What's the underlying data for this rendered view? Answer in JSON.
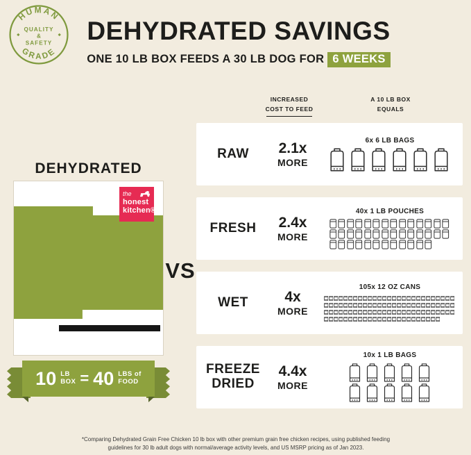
{
  "badge": {
    "top": "HUMAN",
    "mid1": "QUALITY",
    "mid2": "&",
    "mid3": "SAFETY",
    "bottom": "GRADE"
  },
  "header": {
    "title": "DEHYDRATED SAVINGS",
    "subtitle": "ONE 10 LB BOX FEEDS A 30 LB DOG FOR",
    "highlight": "6 WEEKS"
  },
  "columns": {
    "cost": "INCREASED COST TO FEED",
    "equals": "A 10 LB BOX EQUALS"
  },
  "left": {
    "title": "DEHYDRATED",
    "logo": {
      "line1": "the",
      "line2": "honest",
      "line3": "kitchen®"
    },
    "ribbon": {
      "qty1": "10",
      "unit1a": "LB",
      "unit1b": "BOX",
      "eq": "=",
      "qty2": "40",
      "unit2a": "LBS of",
      "unit2b": "FOOD"
    }
  },
  "vs": "VS",
  "rows": [
    {
      "label": "RAW",
      "cost": "2.1x",
      "more": "MORE",
      "equals": "6x 6 LB BAGS",
      "icon": "bag-large",
      "count": 6,
      "per_row": 6
    },
    {
      "label": "FRESH",
      "cost": "2.4x",
      "more": "MORE",
      "equals": "40x 1 LB POUCHES",
      "icon": "pouch",
      "count": 40,
      "per_row": 14
    },
    {
      "label": "WET",
      "cost": "4x",
      "more": "MORE",
      "equals": "105x 12 OZ CANS",
      "icon": "can",
      "count": 105,
      "per_row": 27
    },
    {
      "label": "FREEZE DRIED",
      "cost": "4.4x",
      "more": "MORE",
      "equals": "10x 1 LB BAGS",
      "icon": "bag-small",
      "count": 10,
      "per_row": 5
    }
  ],
  "footnote": "*Comparing Dehydrated Grain Free Chicken 10 lb box with other premium grain free chicken recipes, using published feeding guidelines for 30 lb adult dogs with normal/average activity levels, and US MSRP pricing as of Jan 2023.",
  "colors": {
    "green": "#8ea23e",
    "dark": "#1d1d1b",
    "red": "#e62b53",
    "cream": "#f2ecdf"
  }
}
